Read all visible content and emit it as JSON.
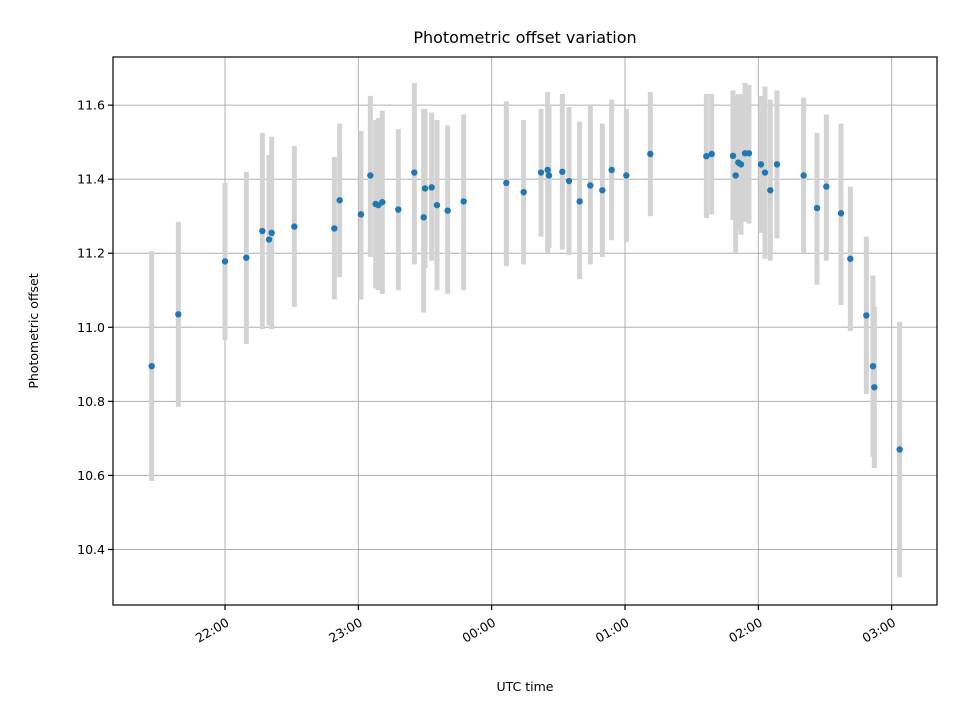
{
  "chart_data": {
    "type": "scatter",
    "title": "Photometric offset variation",
    "xlabel": "UTC time",
    "ylabel": "Photometric offset",
    "x_unit": "hours since 00:00 UTC (negative = previous evening)",
    "xlim": [
      -2.84,
      3.34
    ],
    "ylim": [
      10.25,
      11.73
    ],
    "yticks": [
      10.4,
      10.6,
      10.8,
      11.0,
      11.2,
      11.4,
      11.6
    ],
    "xticks": [
      {
        "value": -2,
        "label": "22:00"
      },
      {
        "value": -1,
        "label": "23:00"
      },
      {
        "value": 0,
        "label": "00:00"
      },
      {
        "value": 1,
        "label": "01:00"
      },
      {
        "value": 2,
        "label": "02:00"
      },
      {
        "value": 3,
        "label": "03:00"
      }
    ],
    "grid": true,
    "point_color": "#1f77b4",
    "errorbar_color": "#d3d3d3",
    "points": [
      {
        "x": -2.55,
        "y": 10.895,
        "lo": 10.585,
        "hi": 11.205
      },
      {
        "x": -2.35,
        "y": 11.035,
        "lo": 10.785,
        "hi": 11.285
      },
      {
        "x": -2.0,
        "y": 11.178,
        "lo": 10.965,
        "hi": 11.39
      },
      {
        "x": -1.84,
        "y": 11.188,
        "lo": 10.955,
        "hi": 11.42
      },
      {
        "x": -1.72,
        "y": 11.26,
        "lo": 10.995,
        "hi": 11.525
      },
      {
        "x": -1.67,
        "y": 11.237,
        "lo": 11.005,
        "hi": 11.465
      },
      {
        "x": -1.65,
        "y": 11.255,
        "lo": 10.995,
        "hi": 11.515
      },
      {
        "x": -1.48,
        "y": 11.272,
        "lo": 11.055,
        "hi": 11.49
      },
      {
        "x": -1.18,
        "y": 11.267,
        "lo": 11.075,
        "hi": 11.46
      },
      {
        "x": -1.14,
        "y": 11.343,
        "lo": 11.135,
        "hi": 11.55
      },
      {
        "x": -0.98,
        "y": 11.305,
        "lo": 11.075,
        "hi": 11.53
      },
      {
        "x": -0.91,
        "y": 11.41,
        "lo": 11.19,
        "hi": 11.625
      },
      {
        "x": -0.87,
        "y": 11.333,
        "lo": 11.105,
        "hi": 11.56
      },
      {
        "x": -0.85,
        "y": 11.33,
        "lo": 11.1,
        "hi": 11.565
      },
      {
        "x": -0.82,
        "y": 11.338,
        "lo": 11.09,
        "hi": 11.585
      },
      {
        "x": -0.7,
        "y": 11.318,
        "lo": 11.1,
        "hi": 11.535
      },
      {
        "x": -0.58,
        "y": 11.418,
        "lo": 11.17,
        "hi": 11.66
      },
      {
        "x": -0.51,
        "y": 11.297,
        "lo": 11.04,
        "hi": 11.59
      },
      {
        "x": -0.5,
        "y": 11.375,
        "lo": 11.16,
        "hi": 11.59
      },
      {
        "x": -0.45,
        "y": 11.378,
        "lo": 11.18,
        "hi": 11.58
      },
      {
        "x": -0.41,
        "y": 11.33,
        "lo": 11.1,
        "hi": 11.56
      },
      {
        "x": -0.33,
        "y": 11.315,
        "lo": 11.09,
        "hi": 11.545
      },
      {
        "x": -0.21,
        "y": 11.34,
        "lo": 11.1,
        "hi": 11.575
      },
      {
        "x": 0.11,
        "y": 11.39,
        "lo": 11.165,
        "hi": 11.61
      },
      {
        "x": 0.24,
        "y": 11.365,
        "lo": 11.17,
        "hi": 11.56
      },
      {
        "x": 0.37,
        "y": 11.418,
        "lo": 11.245,
        "hi": 11.59
      },
      {
        "x": 0.42,
        "y": 11.425,
        "lo": 11.2,
        "hi": 11.635
      },
      {
        "x": 0.43,
        "y": 11.41,
        "lo": 11.215,
        "hi": 11.6
      },
      {
        "x": 0.53,
        "y": 11.42,
        "lo": 11.21,
        "hi": 11.63
      },
      {
        "x": 0.58,
        "y": 11.395,
        "lo": 11.195,
        "hi": 11.595
      },
      {
        "x": 0.66,
        "y": 11.34,
        "lo": 11.13,
        "hi": 11.555
      },
      {
        "x": 0.74,
        "y": 11.383,
        "lo": 11.17,
        "hi": 11.6
      },
      {
        "x": 0.83,
        "y": 11.37,
        "lo": 11.19,
        "hi": 11.55
      },
      {
        "x": 0.9,
        "y": 11.425,
        "lo": 11.235,
        "hi": 11.615
      },
      {
        "x": 1.01,
        "y": 11.41,
        "lo": 11.23,
        "hi": 11.59
      },
      {
        "x": 1.19,
        "y": 11.468,
        "lo": 11.3,
        "hi": 11.635
      },
      {
        "x": 1.61,
        "y": 11.462,
        "lo": 11.295,
        "hi": 11.63
      },
      {
        "x": 1.65,
        "y": 11.468,
        "lo": 11.305,
        "hi": 11.63
      },
      {
        "x": 1.81,
        "y": 11.463,
        "lo": 11.29,
        "hi": 11.64
      },
      {
        "x": 1.83,
        "y": 11.41,
        "lo": 11.2,
        "hi": 11.625
      },
      {
        "x": 1.85,
        "y": 11.445,
        "lo": 11.265,
        "hi": 11.63
      },
      {
        "x": 1.87,
        "y": 11.44,
        "lo": 11.25,
        "hi": 11.63
      },
      {
        "x": 1.9,
        "y": 11.47,
        "lo": 11.285,
        "hi": 11.66
      },
      {
        "x": 1.93,
        "y": 11.47,
        "lo": 11.28,
        "hi": 11.655
      },
      {
        "x": 2.02,
        "y": 11.44,
        "lo": 11.255,
        "hi": 11.625
      },
      {
        "x": 2.05,
        "y": 11.418,
        "lo": 11.185,
        "hi": 11.65
      },
      {
        "x": 2.09,
        "y": 11.37,
        "lo": 11.18,
        "hi": 11.615
      },
      {
        "x": 2.14,
        "y": 11.44,
        "lo": 11.24,
        "hi": 11.64
      },
      {
        "x": 2.34,
        "y": 11.41,
        "lo": 11.2,
        "hi": 11.62
      },
      {
        "x": 2.44,
        "y": 11.322,
        "lo": 11.115,
        "hi": 11.525
      },
      {
        "x": 2.51,
        "y": 11.38,
        "lo": 11.18,
        "hi": 11.575
      },
      {
        "x": 2.62,
        "y": 11.308,
        "lo": 11.06,
        "hi": 11.55
      },
      {
        "x": 2.69,
        "y": 11.185,
        "lo": 10.99,
        "hi": 11.38
      },
      {
        "x": 2.81,
        "y": 11.032,
        "lo": 10.82,
        "hi": 11.245
      },
      {
        "x": 2.86,
        "y": 10.895,
        "lo": 10.65,
        "hi": 11.14
      },
      {
        "x": 2.87,
        "y": 10.838,
        "lo": 10.62,
        "hi": 11.055
      },
      {
        "x": 3.06,
        "y": 10.67,
        "lo": 10.325,
        "hi": 11.015
      }
    ]
  }
}
